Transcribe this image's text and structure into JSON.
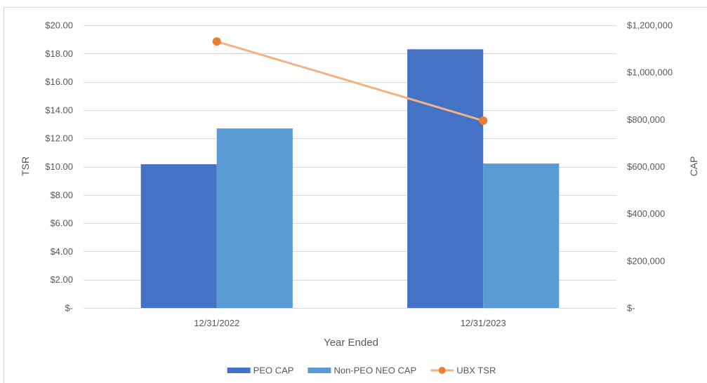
{
  "chart_data": {
    "type": "bar",
    "categories": [
      "12/31/2022",
      "12/31/2023"
    ],
    "series": [
      {
        "name": "PEO CAP",
        "type": "bar",
        "secondary_axis": true,
        "values": [
          610000,
          1098000
        ],
        "color": "#4472C4"
      },
      {
        "name": "Non-PEO NEO CAP",
        "type": "bar",
        "secondary_axis": true,
        "values": [
          762000,
          613000
        ],
        "color": "#5B9BD5"
      },
      {
        "name": "UBX TSR",
        "type": "line",
        "secondary_axis": false,
        "values": [
          18.85,
          13.25
        ],
        "color": "#F4B183",
        "marker_color": "#ED7D31"
      }
    ],
    "xlabel": "Year Ended",
    "ylabel": "TSR",
    "y2label": "CAP",
    "ylim": [
      0,
      20
    ],
    "y2lim": [
      0,
      1200000
    ],
    "yticks": [
      0,
      2,
      4,
      6,
      8,
      10,
      12,
      14,
      16,
      18,
      20
    ],
    "ytick_labels": [
      "$-",
      "$2.00",
      "$4.00",
      "$6.00",
      "$8.00",
      "$10.00",
      "$12.00",
      "$14.00",
      "$16.00",
      "$18.00",
      "$20.00"
    ],
    "y2ticks": [
      0,
      200000,
      400000,
      600000,
      800000,
      1000000,
      1200000
    ],
    "y2tick_labels": [
      "$-",
      "$200,000",
      "$400,000",
      "$600,000",
      "$800,000",
      "$1,000,000",
      "$1,200,000"
    ],
    "grid": true,
    "legend": "bottom"
  }
}
